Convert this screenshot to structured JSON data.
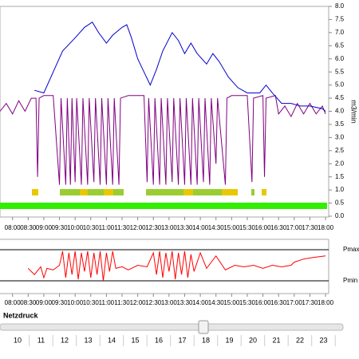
{
  "chart_data": [
    {
      "type": "line",
      "ylabel": "m3/min",
      "xlim": [
        7.6,
        18.05
      ],
      "ylim": [
        0,
        8
      ],
      "xticks": [
        {
          "value": 8,
          "label": "08:00"
        },
        {
          "value": 8.5,
          "label": "08:30"
        },
        {
          "value": 9,
          "label": "09:00"
        },
        {
          "value": 9.5,
          "label": "09:30"
        },
        {
          "value": 10,
          "label": "10:00"
        },
        {
          "value": 10.5,
          "label": "10:30"
        },
        {
          "value": 11,
          "label": "11:00"
        },
        {
          "value": 11.5,
          "label": "11:30"
        },
        {
          "value": 12,
          "label": "12:00"
        },
        {
          "value": 12.5,
          "label": "12:30"
        },
        {
          "value": 13,
          "label": "13:00"
        },
        {
          "value": 13.5,
          "label": "13:30"
        },
        {
          "value": 14,
          "label": "14:00"
        },
        {
          "value": 14.5,
          "label": "14:30"
        },
        {
          "value": 15,
          "label": "15:00"
        },
        {
          "value": 15.5,
          "label": "15:30"
        },
        {
          "value": 16,
          "label": "16:00"
        },
        {
          "value": 16.5,
          "label": "16:30"
        },
        {
          "value": 17,
          "label": "17:00"
        },
        {
          "value": 17.5,
          "label": "17:30"
        },
        {
          "value": 18,
          "label": "18:00"
        }
      ],
      "yticks": [
        {
          "value": 0,
          "label": "0.0"
        },
        {
          "value": 0.5,
          "label": "0.5"
        },
        {
          "value": 1,
          "label": "1.0"
        },
        {
          "value": 1.5,
          "label": "1.5"
        },
        {
          "value": 2,
          "label": "2.0"
        },
        {
          "value": 2.5,
          "label": "2.5"
        },
        {
          "value": 3,
          "label": "3.0"
        },
        {
          "value": 3.5,
          "label": "3.5"
        },
        {
          "value": 4,
          "label": "4.0"
        },
        {
          "value": 4.5,
          "label": "4.5"
        },
        {
          "value": 5,
          "label": "5.0"
        },
        {
          "value": 5.5,
          "label": "5.5"
        },
        {
          "value": 6,
          "label": "6.0"
        },
        {
          "value": 6.5,
          "label": "6.5"
        },
        {
          "value": 7,
          "label": "7.0"
        },
        {
          "value": 7.5,
          "label": "7.5"
        },
        {
          "value": 8,
          "label": "8.0"
        }
      ],
      "series": [
        {
          "color": "#800080",
          "x": [
            7.6,
            7.8,
            8.0,
            8.2,
            8.4,
            8.6,
            8.75,
            8.8,
            8.85,
            9.0,
            9.3,
            9.5,
            9.55,
            9.7,
            9.75,
            9.85,
            9.9,
            10.0,
            10.05,
            10.2,
            10.25,
            10.4,
            10.45,
            10.6,
            10.65,
            10.8,
            10.85,
            11.0,
            11.05,
            11.2,
            11.25,
            11.4,
            11.45,
            11.7,
            12.0,
            12.2,
            12.3,
            12.35,
            12.5,
            12.55,
            12.7,
            12.75,
            12.9,
            12.95,
            13.1,
            13.15,
            13.3,
            13.35,
            13.5,
            13.55,
            13.7,
            13.75,
            13.9,
            13.95,
            14.1,
            14.15,
            14.3,
            14.35,
            14.5,
            14.55,
            14.8,
            14.85,
            15.0,
            15.5,
            15.65,
            15.7,
            16.0,
            16.05,
            16.1,
            16.4,
            16.5,
            16.7,
            16.9,
            17.1,
            17.3,
            17.5,
            17.7,
            17.9,
            18.0
          ],
          "values": [
            4.0,
            4.3,
            3.9,
            4.4,
            4.0,
            4.5,
            4.5,
            1.5,
            4.5,
            4.6,
            4.6,
            1.2,
            4.5,
            1.2,
            4.5,
            1.2,
            4.5,
            1.3,
            4.5,
            1.2,
            4.5,
            1.2,
            4.5,
            1.3,
            4.5,
            1.2,
            4.5,
            1.2,
            4.5,
            1.2,
            4.5,
            1.2,
            4.5,
            4.6,
            4.6,
            4.6,
            1.3,
            4.5,
            1.2,
            4.5,
            1.2,
            4.5,
            1.2,
            4.5,
            1.3,
            4.5,
            1.2,
            4.5,
            1.2,
            4.5,
            1.2,
            4.5,
            1.2,
            4.5,
            1.3,
            4.5,
            1.2,
            4.5,
            2.0,
            4.5,
            1.2,
            4.5,
            4.6,
            4.6,
            1.3,
            4.5,
            4.6,
            1.5,
            4.5,
            4.6,
            3.9,
            4.2,
            3.8,
            4.3,
            3.9,
            4.3,
            3.9,
            4.2,
            3.9
          ]
        },
        {
          "color": "#0000cc",
          "x": [
            8.7,
            9.0,
            9.3,
            9.6,
            10.0,
            10.3,
            10.55,
            10.75,
            11.0,
            11.2,
            11.5,
            11.65,
            11.8,
            12.0,
            12.2,
            12.4,
            12.6,
            12.8,
            13.1,
            13.3,
            13.5,
            13.7,
            13.9,
            14.2,
            14.4,
            14.6,
            14.9,
            15.2,
            15.5,
            15.9,
            16.1,
            16.3,
            16.6,
            16.9,
            17.2,
            17.5,
            17.9,
            18.0
          ],
          "values": [
            4.8,
            4.7,
            5.5,
            6.3,
            6.8,
            7.2,
            7.4,
            7.0,
            6.6,
            6.9,
            7.2,
            7.3,
            6.8,
            6.0,
            5.5,
            5.0,
            5.6,
            6.3,
            7.0,
            6.7,
            6.2,
            6.6,
            6.2,
            5.8,
            6.2,
            5.9,
            5.3,
            4.9,
            4.7,
            4.7,
            5.0,
            4.7,
            4.3,
            4.3,
            4.2,
            4.2,
            4.1,
            4.0
          ]
        }
      ]
    },
    {
      "type": "line",
      "xlim": [
        7.6,
        18.05
      ],
      "ylim": [
        0,
        1
      ],
      "xticks": [
        {
          "value": 8,
          "label": "08:00"
        },
        {
          "value": 8.5,
          "label": "08:30"
        },
        {
          "value": 9,
          "label": "09:00"
        },
        {
          "value": 9.5,
          "label": "09:30"
        },
        {
          "value": 10,
          "label": "10:00"
        },
        {
          "value": 10.5,
          "label": "10:30"
        },
        {
          "value": 11,
          "label": "11:00"
        },
        {
          "value": 11.5,
          "label": "11:30"
        },
        {
          "value": 12,
          "label": "12:00"
        },
        {
          "value": 12.5,
          "label": "12:30"
        },
        {
          "value": 13,
          "label": "13:00"
        },
        {
          "value": 13.5,
          "label": "13:30"
        },
        {
          "value": 14,
          "label": "14:00"
        },
        {
          "value": 14.5,
          "label": "14:30"
        },
        {
          "value": 15,
          "label": "15:00"
        },
        {
          "value": 15.5,
          "label": "15:30"
        },
        {
          "value": 16,
          "label": "16:00"
        },
        {
          "value": 16.5,
          "label": "16:30"
        },
        {
          "value": 17,
          "label": "17:00"
        },
        {
          "value": 17.5,
          "label": "17:30"
        },
        {
          "value": 18,
          "label": "18:00"
        }
      ],
      "yticks": [
        {
          "value": 0,
          "label": "Pmin"
        },
        {
          "value": 1,
          "label": "Pmax"
        }
      ],
      "series": [
        {
          "color": "#ff0000",
          "x": [
            8.5,
            8.7,
            8.9,
            9.0,
            9.1,
            9.3,
            9.5,
            9.6,
            9.7,
            9.8,
            9.9,
            10.0,
            10.1,
            10.2,
            10.3,
            10.4,
            10.5,
            10.6,
            10.7,
            10.8,
            10.9,
            11.0,
            11.1,
            11.2,
            11.3,
            11.5,
            11.7,
            12.0,
            12.3,
            12.5,
            12.6,
            12.7,
            12.8,
            12.9,
            13.0,
            13.1,
            13.2,
            13.3,
            13.4,
            13.5,
            13.6,
            13.7,
            13.8,
            14.0,
            14.2,
            14.5,
            14.8,
            15.1,
            15.4,
            15.7,
            16.0,
            16.3,
            16.6,
            16.9,
            17.0,
            17.3,
            17.6,
            18.0
          ],
          "values": [
            0.4,
            0.2,
            0.45,
            0.1,
            0.4,
            0.35,
            0.5,
            0.95,
            0.1,
            0.9,
            0.2,
            0.95,
            0.05,
            0.9,
            0.3,
            0.95,
            0.1,
            0.9,
            0.2,
            0.95,
            0.0,
            0.9,
            0.3,
            0.95,
            0.4,
            0.45,
            0.35,
            0.5,
            0.45,
            0.9,
            0.2,
            0.95,
            0.1,
            0.9,
            0.3,
            0.95,
            0.05,
            0.9,
            0.2,
            0.95,
            0.1,
            0.85,
            0.3,
            0.9,
            0.4,
            0.8,
            0.35,
            0.5,
            0.45,
            0.5,
            0.4,
            0.5,
            0.45,
            0.5,
            0.6,
            0.7,
            0.75,
            0.8
          ]
        }
      ]
    }
  ],
  "slider": {
    "label": "Netzdruck",
    "scale": [
      10,
      11,
      12,
      13,
      14,
      15,
      16,
      17,
      18,
      19,
      20,
      21,
      22,
      23
    ]
  }
}
